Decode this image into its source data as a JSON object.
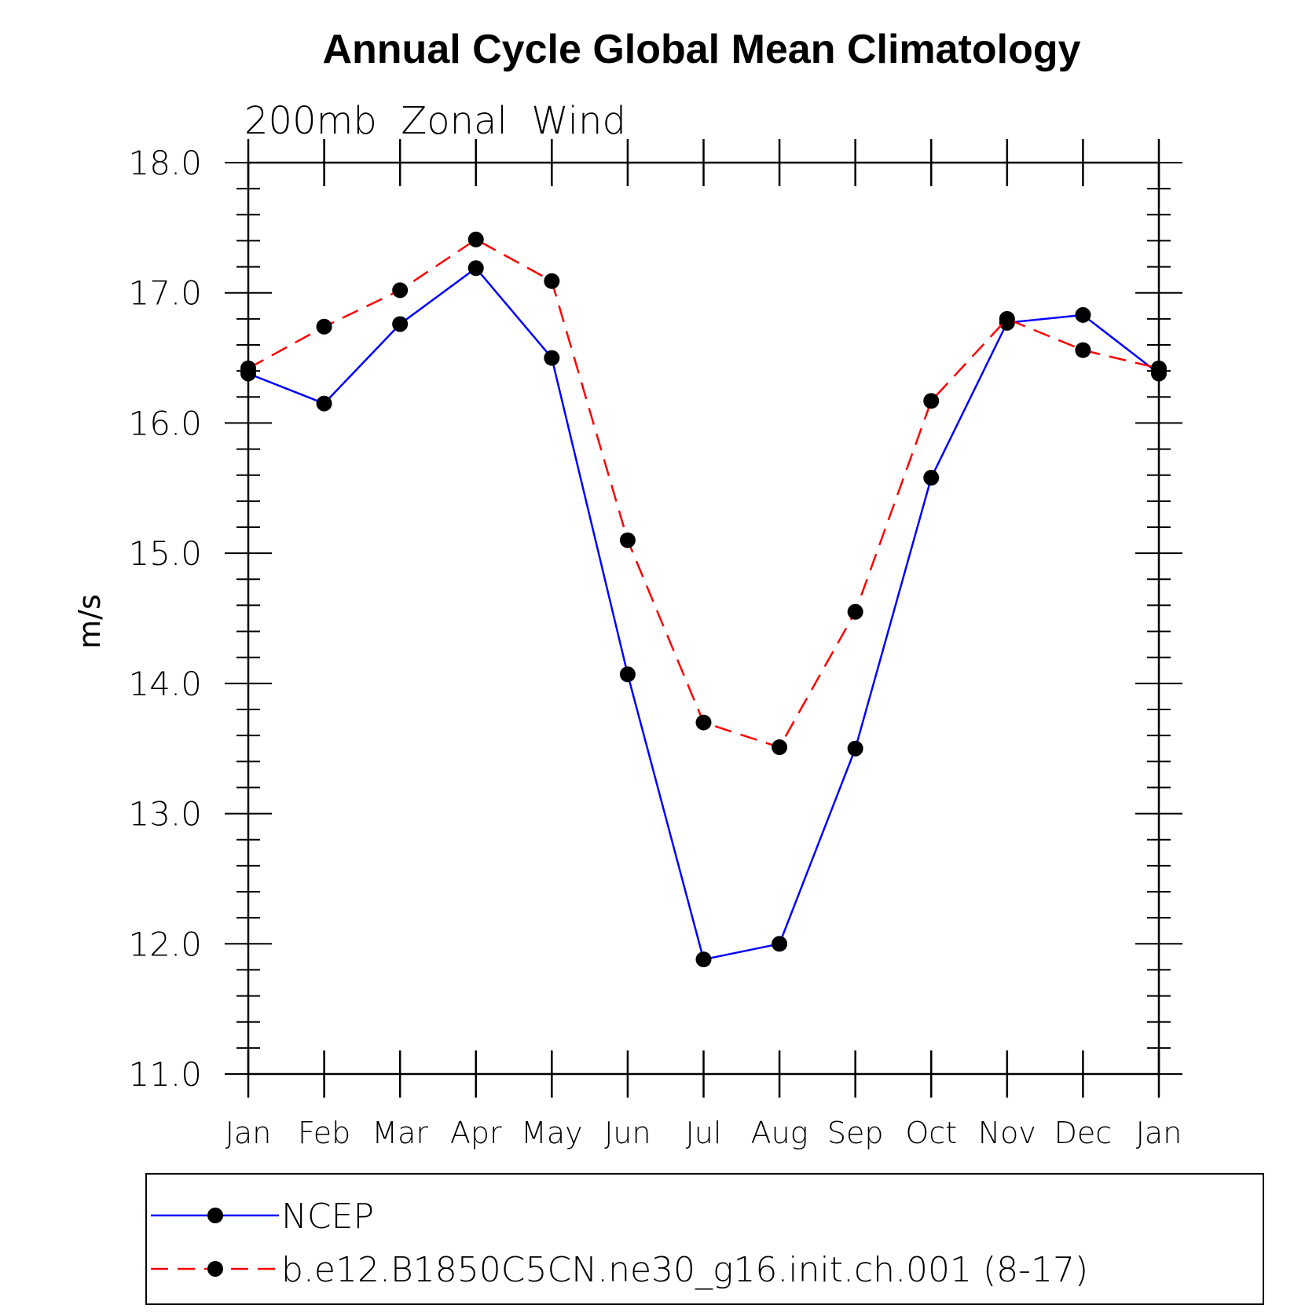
{
  "chart_data": {
    "type": "line",
    "title": "Annual Cycle Global Mean Climatology",
    "subtitle": "200mb  Zonal  Wind",
    "ylabel": "m/s",
    "xlabel": "",
    "categories": [
      "Jan",
      "Feb",
      "Mar",
      "Apr",
      "May",
      "Jun",
      "Jul",
      "Aug",
      "Sep",
      "Oct",
      "Nov",
      "Dec",
      "Jan"
    ],
    "ylim": [
      11.0,
      18.0
    ],
    "yticks": [
      "11.0",
      "12.0",
      "13.0",
      "14.0",
      "15.0",
      "16.0",
      "17.0",
      "18.0"
    ],
    "grid": false,
    "legend_position": "bottom",
    "series": [
      {
        "name": "NCEP",
        "color": "#0000ff",
        "dash": "solid",
        "values": [
          16.38,
          16.15,
          16.76,
          17.19,
          16.5,
          14.07,
          11.88,
          12.0,
          13.5,
          15.58,
          16.77,
          16.83,
          16.38
        ]
      },
      {
        "name": "b.e12.B1850C5CN.ne30_g16.init.ch.001 (8-17)",
        "color": "#ff0000",
        "dash": "dashed",
        "values": [
          16.42,
          16.74,
          17.02,
          17.41,
          17.09,
          15.1,
          13.7,
          13.51,
          14.55,
          16.17,
          16.8,
          16.56,
          16.42
        ]
      }
    ]
  }
}
